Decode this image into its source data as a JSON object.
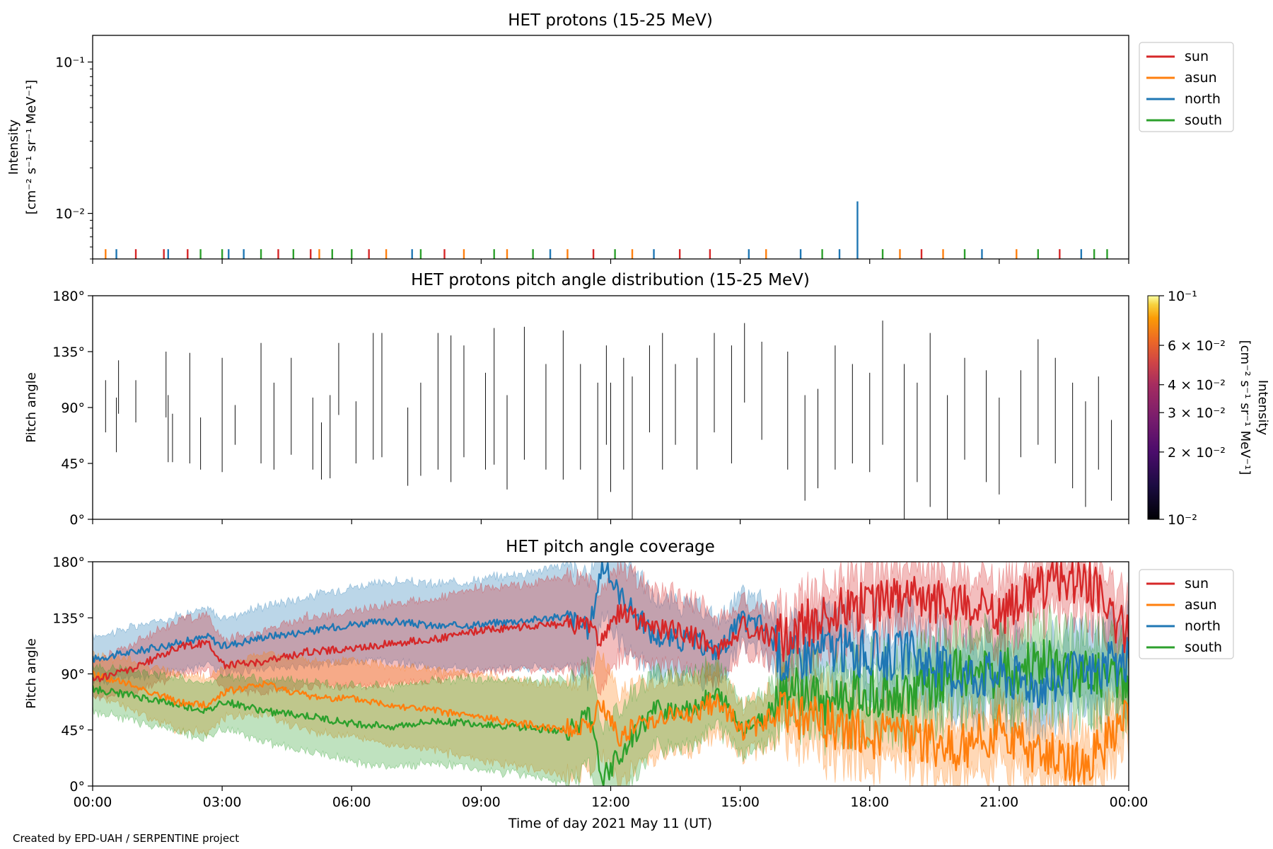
{
  "figure": {
    "xlabel": "Time of day 2021 May 11 (UT)",
    "credit": "Created by EPD-UAH / SERPENTINE project"
  },
  "colors": {
    "sun": "#d62728",
    "asun": "#ff7f0e",
    "north": "#1f77b4",
    "south": "#2ca02c"
  },
  "chart_data": [
    {
      "type": "line",
      "title": "HET protons (15-25 MeV)",
      "ylabel_line1": "Intensity",
      "ylabel_line2": "[cm⁻² s⁻¹ sr⁻¹ MeV⁻¹]",
      "yscale": "log",
      "ylim": [
        0.005,
        0.15
      ],
      "yticks": [
        {
          "v": 0.1,
          "label": "10⁻¹"
        },
        {
          "v": 0.01,
          "label": "10⁻²"
        }
      ],
      "xlim": [
        "00:00",
        "24:00"
      ],
      "legend": [
        "sun",
        "asun",
        "north",
        "south"
      ],
      "legend_placement": "upper-right outside",
      "baseline_level": 0.0058,
      "spikes": [
        {
          "series": "north",
          "time": "17:43",
          "value": 0.012
        }
      ],
      "bars": [
        {
          "series": "asun",
          "t": 0.3
        },
        {
          "series": "north",
          "t": 0.55
        },
        {
          "series": "sun",
          "t": 1.0
        },
        {
          "series": "sun",
          "t": 1.65
        },
        {
          "series": "north",
          "t": 1.75
        },
        {
          "series": "sun",
          "t": 2.2
        },
        {
          "series": "south",
          "t": 2.5
        },
        {
          "series": "south",
          "t": 3.0
        },
        {
          "series": "north",
          "t": 3.15
        },
        {
          "series": "north",
          "t": 3.5
        },
        {
          "series": "south",
          "t": 3.9
        },
        {
          "series": "sun",
          "t": 4.3
        },
        {
          "series": "south",
          "t": 4.65
        },
        {
          "series": "sun",
          "t": 5.05
        },
        {
          "series": "asun",
          "t": 5.25
        },
        {
          "series": "south",
          "t": 5.55
        },
        {
          "series": "south",
          "t": 6.0
        },
        {
          "series": "sun",
          "t": 6.4
        },
        {
          "series": "asun",
          "t": 6.8
        },
        {
          "series": "north",
          "t": 7.4
        },
        {
          "series": "south",
          "t": 7.6
        },
        {
          "series": "sun",
          "t": 8.15
        },
        {
          "series": "asun",
          "t": 8.6
        },
        {
          "series": "south",
          "t": 9.3
        },
        {
          "series": "asun",
          "t": 9.6
        },
        {
          "series": "south",
          "t": 10.2
        },
        {
          "series": "north",
          "t": 10.6
        },
        {
          "series": "asun",
          "t": 11.0
        },
        {
          "series": "sun",
          "t": 11.6
        },
        {
          "series": "south",
          "t": 12.1
        },
        {
          "series": "asun",
          "t": 12.5
        },
        {
          "series": "north",
          "t": 13.0
        },
        {
          "series": "sun",
          "t": 13.6
        },
        {
          "series": "sun",
          "t": 14.3
        },
        {
          "series": "north",
          "t": 15.2
        },
        {
          "series": "asun",
          "t": 15.6
        },
        {
          "series": "north",
          "t": 16.4
        },
        {
          "series": "south",
          "t": 16.9
        },
        {
          "series": "north",
          "t": 17.3
        },
        {
          "series": "south",
          "t": 18.3
        },
        {
          "series": "asun",
          "t": 18.7
        },
        {
          "series": "sun",
          "t": 19.2
        },
        {
          "series": "asun",
          "t": 19.7
        },
        {
          "series": "south",
          "t": 20.2
        },
        {
          "series": "north",
          "t": 20.6
        },
        {
          "series": "asun",
          "t": 21.4
        },
        {
          "series": "south",
          "t": 21.9
        },
        {
          "series": "sun",
          "t": 22.4
        },
        {
          "series": "north",
          "t": 22.9
        },
        {
          "series": "south",
          "t": 23.2
        },
        {
          "series": "south",
          "t": 23.5
        }
      ]
    },
    {
      "type": "heatmap",
      "title": "HET protons pitch angle distribution (15-25 MeV)",
      "ylabel": "Pitch angle",
      "ylim": [
        0,
        180
      ],
      "yticks": [
        "0°",
        "45°",
        "90°",
        "135°",
        "180°"
      ],
      "colorbar": {
        "label_line1": "Intensity",
        "label_line2": "[cm⁻² s⁻¹ sr⁻¹ MeV⁻¹]",
        "scale": "log",
        "range": [
          0.01,
          0.1
        ],
        "ticks": [
          {
            "v": 0.1,
            "label": "10⁻¹"
          },
          {
            "v": 0.06,
            "label": "6 × 10⁻²"
          },
          {
            "v": 0.04,
            "label": "4 × 10⁻²"
          },
          {
            "v": 0.03,
            "label": "3 × 10⁻²"
          },
          {
            "v": 0.02,
            "label": "2 × 10⁻²"
          },
          {
            "v": 0.01,
            "label": "10⁻²"
          }
        ]
      },
      "segments": [
        [
          0.3,
          70,
          112
        ],
        [
          0.55,
          54,
          98
        ],
        [
          0.6,
          85,
          128
        ],
        [
          1.0,
          78,
          112
        ],
        [
          1.7,
          82,
          135
        ],
        [
          1.75,
          46,
          100
        ],
        [
          1.85,
          46,
          85
        ],
        [
          2.25,
          45,
          134
        ],
        [
          2.5,
          40,
          82
        ],
        [
          3.0,
          38,
          130
        ],
        [
          3.3,
          60,
          92
        ],
        [
          3.9,
          45,
          142
        ],
        [
          4.2,
          40,
          110
        ],
        [
          4.6,
          52,
          130
        ],
        [
          5.1,
          40,
          98
        ],
        [
          5.3,
          32,
          78
        ],
        [
          5.5,
          33,
          100
        ],
        [
          5.7,
          84,
          142
        ],
        [
          6.1,
          45,
          95
        ],
        [
          6.5,
          48,
          150
        ],
        [
          6.7,
          50,
          150
        ],
        [
          7.3,
          27,
          90
        ],
        [
          7.6,
          35,
          110
        ],
        [
          8.0,
          40,
          150
        ],
        [
          8.3,
          30,
          148
        ],
        [
          8.6,
          50,
          140
        ],
        [
          9.1,
          40,
          118
        ],
        [
          9.3,
          44,
          154
        ],
        [
          9.6,
          24,
          100
        ],
        [
          10.0,
          48,
          155
        ],
        [
          10.5,
          40,
          125
        ],
        [
          10.9,
          32,
          152
        ],
        [
          11.3,
          40,
          125
        ],
        [
          11.7,
          0,
          110
        ],
        [
          11.9,
          60,
          140
        ],
        [
          12.0,
          22,
          110
        ],
        [
          12.3,
          40,
          130
        ],
        [
          12.5,
          0,
          115
        ],
        [
          12.9,
          70,
          140
        ],
        [
          13.2,
          40,
          150
        ],
        [
          13.5,
          60,
          125
        ],
        [
          14.0,
          40,
          130
        ],
        [
          14.4,
          70,
          150
        ],
        [
          14.8,
          45,
          140
        ],
        [
          15.1,
          94,
          158
        ],
        [
          15.5,
          64,
          143
        ],
        [
          16.1,
          40,
          135
        ],
        [
          16.5,
          15,
          100
        ],
        [
          16.8,
          25,
          105
        ],
        [
          17.2,
          40,
          140
        ],
        [
          17.6,
          45,
          125
        ],
        [
          18.0,
          38,
          118
        ],
        [
          18.3,
          60,
          160
        ],
        [
          18.8,
          0,
          125
        ],
        [
          19.1,
          30,
          110
        ],
        [
          19.4,
          10,
          150
        ],
        [
          19.8,
          0,
          100
        ],
        [
          20.2,
          48,
          130
        ],
        [
          20.7,
          30,
          120
        ],
        [
          21.0,
          20,
          98
        ],
        [
          21.5,
          50,
          120
        ],
        [
          21.9,
          60,
          145
        ],
        [
          22.3,
          45,
          130
        ],
        [
          22.7,
          25,
          110
        ],
        [
          23.0,
          10,
          95
        ],
        [
          23.3,
          40,
          115
        ],
        [
          23.6,
          15,
          80
        ]
      ]
    },
    {
      "type": "area",
      "title": "HET pitch angle coverage",
      "ylabel": "Pitch angle",
      "xlabel": "Time of day 2021 May 11 (UT)",
      "ylim": [
        0,
        180
      ],
      "yticks": [
        "0°",
        "45°",
        "90°",
        "135°",
        "180°"
      ],
      "xticks": [
        "00:00",
        "03:00",
        "06:00",
        "09:00",
        "12:00",
        "15:00",
        "18:00",
        "21:00",
        "00:00"
      ],
      "legend": [
        "sun",
        "asun",
        "north",
        "south"
      ],
      "legend_placement": "upper-right outside",
      "series": [
        {
          "name": "north",
          "x_hours": [
            0,
            1,
            2,
            2.7,
            3,
            4,
            5,
            6,
            7,
            8,
            9,
            10,
            11,
            11.5,
            11.8,
            12.2,
            13,
            14,
            14.5,
            15,
            15.5,
            16,
            17,
            18,
            19,
            20,
            21,
            22,
            23,
            24
          ],
          "mid": [
            102,
            108,
            115,
            120,
            112,
            120,
            124,
            130,
            132,
            128,
            130,
            133,
            136,
            125,
            178,
            155,
            120,
            115,
            108,
            132,
            130,
            100,
            112,
            105,
            105,
            90,
            90,
            82,
            90,
            100
          ],
          "halfwidth": [
            18,
            20,
            22,
            22,
            22,
            25,
            28,
            30,
            32,
            34,
            36,
            38,
            42,
            40,
            40,
            38,
            30,
            28,
            25,
            20,
            20,
            22,
            25,
            25,
            28,
            28,
            30,
            30,
            30,
            30
          ]
        },
        {
          "name": "sun",
          "x_hours": [
            0,
            1,
            2,
            2.7,
            3,
            4,
            5,
            6,
            7,
            8,
            9,
            10,
            11,
            11.5,
            11.8,
            12.2,
            13,
            14,
            14.5,
            15,
            15.5,
            16,
            17,
            18,
            19,
            20,
            21,
            22,
            23,
            24
          ],
          "mid": [
            85,
            95,
            112,
            115,
            97,
            100,
            108,
            110,
            115,
            118,
            125,
            128,
            130,
            130,
            115,
            140,
            128,
            120,
            108,
            128,
            122,
            118,
            140,
            145,
            150,
            148,
            140,
            160,
            168,
            120
          ],
          "halfwidth": [
            15,
            20,
            22,
            22,
            20,
            25,
            28,
            30,
            32,
            32,
            34,
            34,
            38,
            36,
            40,
            36,
            30,
            28,
            25,
            20,
            20,
            22,
            25,
            25,
            25,
            25,
            25,
            25,
            25,
            25
          ]
        },
        {
          "name": "asun",
          "x_hours": [
            0,
            1,
            2,
            2.7,
            3,
            4,
            5,
            6,
            7,
            8,
            9,
            10,
            11,
            11.5,
            11.8,
            12.2,
            13,
            14,
            14.5,
            15,
            15.5,
            16,
            17,
            18,
            19,
            20,
            21,
            22,
            23,
            24
          ],
          "mid": [
            90,
            80,
            67,
            65,
            75,
            82,
            72,
            70,
            65,
            60,
            55,
            50,
            45,
            50,
            65,
            40,
            55,
            58,
            70,
            45,
            50,
            60,
            50,
            40,
            40,
            30,
            45,
            25,
            15,
            55
          ],
          "halfwidth": [
            15,
            20,
            22,
            22,
            20,
            25,
            28,
            30,
            32,
            32,
            34,
            34,
            38,
            36,
            40,
            36,
            30,
            28,
            25,
            20,
            20,
            22,
            25,
            25,
            25,
            25,
            25,
            25,
            25,
            25
          ]
        },
        {
          "name": "south",
          "x_hours": [
            0,
            1,
            2,
            2.7,
            3,
            4,
            5,
            6,
            7,
            8,
            9,
            10,
            11,
            11.5,
            11.8,
            12.2,
            13,
            14,
            14.5,
            15,
            15.5,
            16,
            17,
            18,
            19,
            20,
            21,
            22,
            23,
            24
          ],
          "mid": [
            78,
            72,
            65,
            60,
            68,
            60,
            56,
            50,
            48,
            52,
            50,
            47,
            44,
            55,
            5,
            25,
            60,
            65,
            72,
            48,
            50,
            80,
            68,
            75,
            75,
            90,
            90,
            98,
            90,
            80
          ],
          "halfwidth": [
            18,
            20,
            22,
            22,
            22,
            25,
            28,
            30,
            32,
            34,
            36,
            38,
            42,
            40,
            40,
            38,
            30,
            28,
            25,
            20,
            20,
            22,
            25,
            25,
            28,
            28,
            30,
            30,
            30,
            30
          ]
        }
      ]
    }
  ]
}
